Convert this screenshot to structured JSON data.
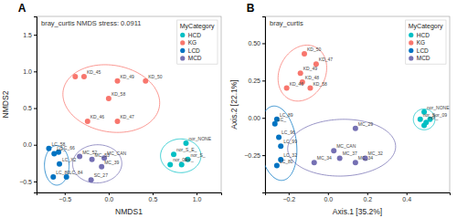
{
  "chart_data": [
    {
      "type": "scatter",
      "title": "bray_curtis NMDS stress: 0.0911",
      "annotations": [
        "A"
      ],
      "x_label": "NMDS1",
      "y_label": "NMDS2",
      "xlim": [
        -0.82,
        1.28
      ],
      "ylim": [
        -0.65,
        1.75
      ],
      "xticks": [
        {
          "value": -0.5,
          "label": "−0.5"
        },
        {
          "value": 0,
          "label": "0.0"
        },
        0.5,
        {
          "value": 1,
          "label": "1.0"
        }
      ],
      "yticks": [
        {
          "value": -0.5,
          "label": "−0.5"
        },
        {
          "value": 0,
          "label": "0.0"
        },
        0.5,
        {
          "value": 1,
          "label": "1.0"
        },
        1.5
      ],
      "grid": false,
      "legend": "top-right",
      "legend_title": "MyCategory",
      "series": [
        {
          "name": "HCD",
          "color": "#00BFC4",
          "x": [
            0.88,
            0.74,
            0.9,
            0.7,
            0.83
          ],
          "values": [
            0.02,
            -0.13,
            -0.2,
            -0.27,
            -0.27
          ],
          "labels": [
            "nor_NONE",
            "nor_S_E_",
            "nor_S_",
            "nor_09",
            "nor_"
          ],
          "ellipse": {
            "cx": 0.82,
            "cy": -0.15,
            "w": 0.46,
            "h": 0.46,
            "angle": 0
          }
        },
        {
          "name": "KG",
          "color": "#F8766D",
          "x": [
            -0.38,
            -0.28,
            0.1,
            0.42,
            0.0,
            -0.24,
            0.1
          ],
          "values": [
            0.93,
            0.93,
            0.87,
            0.87,
            0.63,
            0.32,
            0.32
          ],
          "labels": [
            null,
            "KD_45",
            "KD_49",
            "KD_50",
            "KD_58",
            "KD_46",
            "KD_47"
          ],
          "ellipse": {
            "cx": 0.03,
            "cy": 0.63,
            "w": 1.12,
            "h": 0.9,
            "angle": -18
          }
        },
        {
          "name": "LCD",
          "color": "#0073C2",
          "x": [
            -0.68,
            -0.62,
            -0.57,
            -0.56,
            -0.63,
            -0.48
          ],
          "values": [
            -0.05,
            -0.12,
            -0.1,
            -0.26,
            -0.44,
            -0.44
          ],
          "labels": [
            "LC_58",
            "LC_",
            "LC_66",
            "LC_X2",
            "LC_80",
            "LC_84"
          ],
          "ellipse": {
            "cx": -0.59,
            "cy": -0.28,
            "w": 0.28,
            "h": 0.54,
            "angle": 0
          }
        },
        {
          "name": "MCD",
          "color": "#7570B3",
          "x": [
            -0.33,
            -0.19,
            -0.05,
            -0.08,
            -0.2
          ],
          "values": [
            -0.16,
            -0.2,
            -0.18,
            -0.3,
            -0.48
          ],
          "labels": [
            "MC_52",
            "MC_53",
            "MC_CAN",
            "MC_39",
            "SC_27"
          ],
          "ellipse": {
            "cx": -0.13,
            "cy": -0.26,
            "w": 0.56,
            "h": 0.52,
            "angle": 8
          }
        }
      ]
    },
    {
      "type": "scatter",
      "title": "bray_curtis",
      "annotations": [
        "B"
      ],
      "x_label": "Axis.1 [35.2%]",
      "y_label": "Axis.2 [22.1%]",
      "xlim": [
        -0.32,
        0.62
      ],
      "ylim": [
        -0.5,
        0.68
      ],
      "xticks": [
        {
          "value": -0.2,
          "label": "−0.2"
        },
        {
          "value": 0,
          "label": "0.0"
        },
        0.2,
        0.4
      ],
      "yticks": [
        {
          "value": -0.25,
          "label": "−0.25"
        },
        {
          "value": 0,
          "label": "0.00"
        },
        0.25,
        {
          "value": 0.5,
          "label": "0.50"
        }
      ],
      "grid": false,
      "legend": "top-right",
      "legend_title": "MyCategory",
      "series": [
        {
          "name": "HCD",
          "color": "#00BFC4",
          "x": [
            0.49,
            0.47,
            0.5,
            0.49,
            0.52
          ],
          "values": [
            0.04,
            -0.01,
            -0.03,
            -0.05,
            -0.01
          ],
          "labels": [
            "nor_NONE",
            "nor_S",
            "nor_",
            null,
            "nor_09"
          ],
          "ellipse": {
            "cx": 0.49,
            "cy": -0.01,
            "w": 0.11,
            "h": 0.14,
            "angle": 0
          }
        },
        {
          "name": "KG",
          "color": "#F8766D",
          "x": [
            -0.12,
            -0.06,
            -0.14,
            -0.13,
            -0.21,
            -0.09
          ],
          "values": [
            0.43,
            0.36,
            0.3,
            0.24,
            0.2,
            0.2
          ],
          "labels": [
            "KD_50",
            "KD_47",
            "KD_49",
            "KD_48",
            "KD_46",
            "KD_58"
          ],
          "ellipse": {
            "cx": -0.13,
            "cy": 0.3,
            "w": 0.24,
            "h": 0.38,
            "angle": -12
          }
        },
        {
          "name": "LCD",
          "color": "#0073C2",
          "x": [
            -0.26,
            -0.27,
            -0.25,
            -0.24,
            -0.24,
            -0.26
          ],
          "values": [
            -0.01,
            -0.04,
            -0.13,
            -0.19,
            -0.28,
            -0.32
          ],
          "labels": [
            "LC_89",
            "LC_",
            "LC_96",
            "LC_99",
            "LC_32",
            "LC_80"
          ],
          "ellipse": {
            "cx": -0.255,
            "cy": -0.17,
            "w": 0.19,
            "h": 0.5,
            "angle": 5
          }
        },
        {
          "name": "MCD",
          "color": "#7570B3",
          "x": [
            0.14,
            0.03,
            0.06,
            0.14,
            0.19,
            -0.07
          ],
          "values": [
            -0.07,
            -0.22,
            -0.27,
            -0.3,
            -0.27,
            -0.3
          ],
          "labels": [
            "MC_29",
            "MC_CAN",
            "MC_37",
            "MC_34",
            "MC_32",
            "MC_34"
          ],
          "ellipse": {
            "cx": 0.07,
            "cy": -0.2,
            "w": 0.55,
            "h": 0.38,
            "angle": 3
          }
        }
      ]
    }
  ]
}
